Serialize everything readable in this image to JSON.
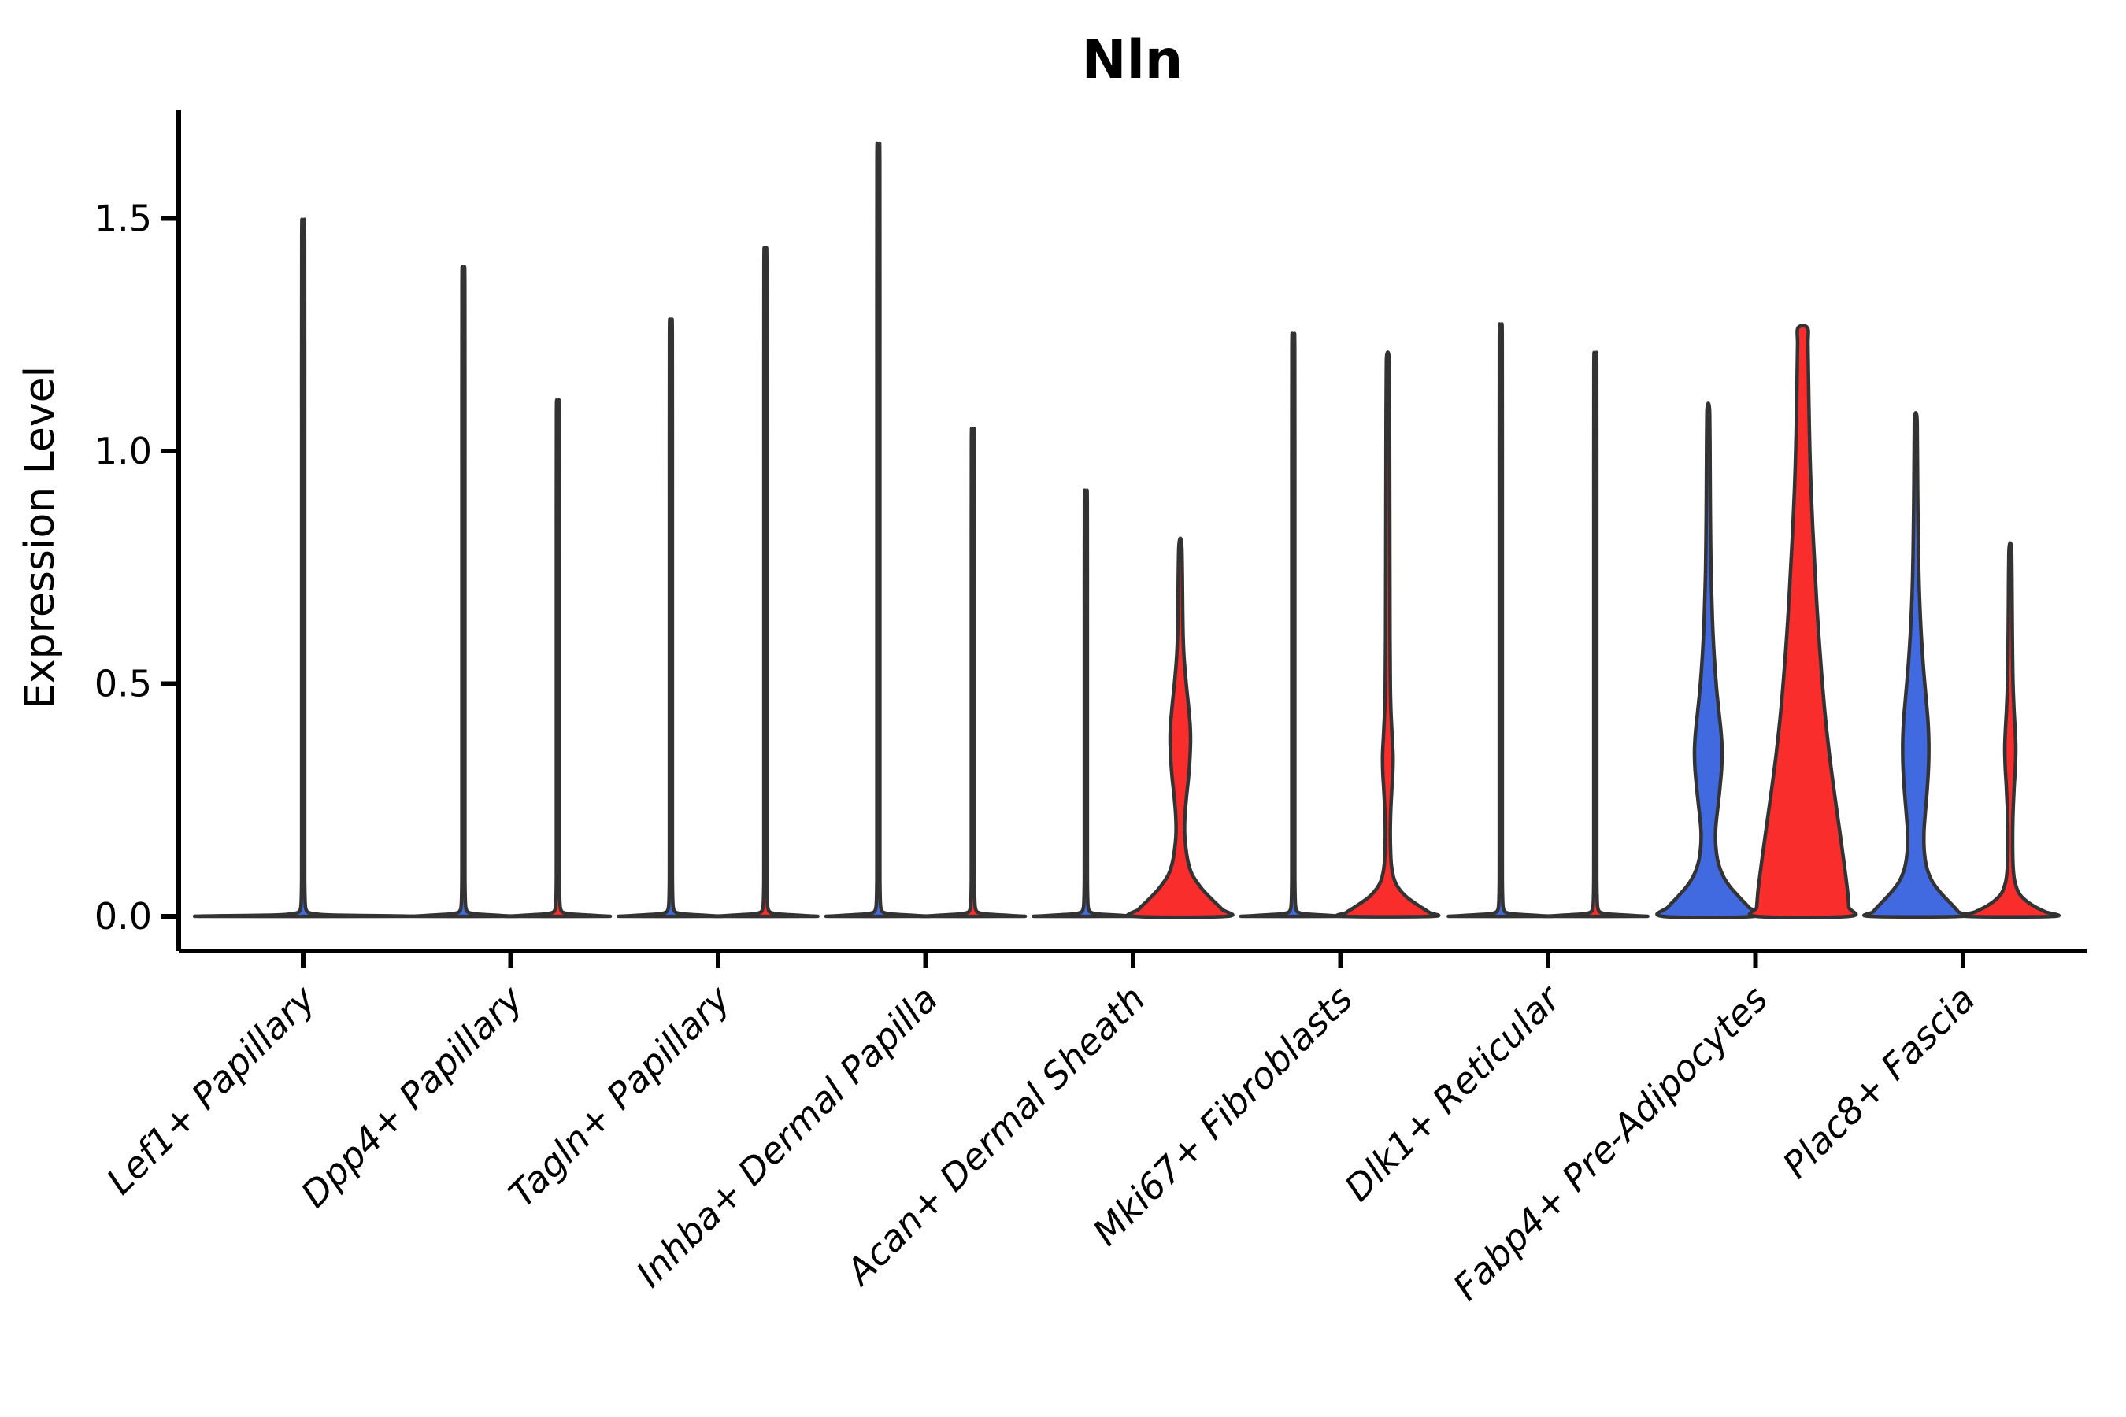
{
  "chart_data": {
    "type": "violin",
    "title": "Nln",
    "ylabel": "Expression Level",
    "xlabel": "",
    "ylim": [
      -0.1,
      1.73
    ],
    "grid": false,
    "legend": "none",
    "yticks": [
      {
        "value": 0.0,
        "label": "0.0"
      },
      {
        "value": 0.5,
        "label": "0.5"
      },
      {
        "value": 1.0,
        "label": "1.0"
      },
      {
        "value": 1.5,
        "label": "1.5"
      }
    ],
    "groups": [
      {
        "name": "group-blue",
        "color": "#4169e0"
      },
      {
        "name": "group-red",
        "color": "#fa2d2d"
      }
    ],
    "outline_color": "#333333",
    "categories": [
      "Lef1+ Papillary",
      "Dpp4+ Papillary",
      "Tagln+ Papillary",
      "Inhba+ Dermal Papilla",
      "Acan+ Dermal Sheath",
      "Mki67+ Fibroblasts",
      "Dlk1+ Reticular",
      "Fabp4+ Pre-Adipocytes",
      "Plac8+ Fascia"
    ],
    "violins": [
      {
        "category": "Lef1+ Papillary",
        "items": [
          {
            "side": "center",
            "kind": "spike",
            "max": 1.48,
            "color": "#4169e0",
            "base_halfwidth": 121
          }
        ]
      },
      {
        "category": "Dpp4+ Papillary",
        "items": [
          {
            "side": "left",
            "kind": "spike",
            "max": 1.38,
            "color": "#4169e0",
            "base_halfwidth": 59
          },
          {
            "side": "right",
            "kind": "spike",
            "max": 1.1,
            "color": "#fa2d2d",
            "base_halfwidth": 59
          }
        ]
      },
      {
        "category": "Tagln+ Papillary",
        "items": [
          {
            "side": "left",
            "kind": "spike",
            "max": 1.27,
            "color": "#4169e0",
            "base_halfwidth": 59
          },
          {
            "side": "right",
            "kind": "spike",
            "max": 1.42,
            "color": "#fa2d2d",
            "base_halfwidth": 59
          }
        ]
      },
      {
        "category": "Inhba+ Dermal Papilla",
        "items": [
          {
            "side": "left",
            "kind": "spike",
            "max": 1.64,
            "color": "#4169e0",
            "base_halfwidth": 59
          },
          {
            "side": "right",
            "kind": "spike",
            "max": 1.04,
            "color": "#fa2d2d",
            "base_halfwidth": 59
          }
        ]
      },
      {
        "category": "Acan+ Dermal Sheath",
        "items": [
          {
            "side": "left",
            "kind": "spike",
            "max": 0.91,
            "color": "#4169e0",
            "base_halfwidth": 59
          },
          {
            "side": "right",
            "kind": "profile",
            "max": 0.81,
            "color": "#fa2d2d",
            "profile": [
              [
                0.81,
                0.8
              ],
              [
                0.79,
                2.0
              ],
              [
                0.73,
                2.6
              ],
              [
                0.66,
                3.0
              ],
              [
                0.6,
                3.6
              ],
              [
                0.55,
                5.0
              ],
              [
                0.5,
                7.5
              ],
              [
                0.45,
                10.5
              ],
              [
                0.41,
                12.5
              ],
              [
                0.38,
                13.0
              ],
              [
                0.34,
                12.2
              ],
              [
                0.3,
                10.5
              ],
              [
                0.26,
                8.0
              ],
              [
                0.22,
                6.0
              ],
              [
                0.19,
                5.4
              ],
              [
                0.16,
                6.2
              ],
              [
                0.12,
                9.5
              ],
              [
                0.09,
                15
              ],
              [
                0.06,
                27
              ],
              [
                0.035,
                41
              ],
              [
                0.015,
                53
              ],
              [
                0,
                59
              ]
            ]
          }
        ]
      },
      {
        "category": "Mki67+ Fibroblasts",
        "items": [
          {
            "side": "left",
            "kind": "spike",
            "max": 1.24,
            "color": "#4169e0",
            "base_halfwidth": 59
          },
          {
            "side": "right",
            "kind": "profile",
            "max": 1.21,
            "color": "#fa2d2d",
            "profile": [
              [
                1.21,
                0.8
              ],
              [
                1.19,
                1.8
              ],
              [
                1.08,
                2.2
              ],
              [
                0.92,
                2.4
              ],
              [
                0.75,
                2.6
              ],
              [
                0.6,
                2.8
              ],
              [
                0.5,
                3.2
              ],
              [
                0.44,
                4.0
              ],
              [
                0.39,
                5.4
              ],
              [
                0.35,
                6.6
              ],
              [
                0.31,
                6.4
              ],
              [
                0.27,
                5.0
              ],
              [
                0.23,
                3.8
              ],
              [
                0.19,
                3.2
              ],
              [
                0.15,
                3.4
              ],
              [
                0.11,
                4.6
              ],
              [
                0.08,
                8
              ],
              [
                0.06,
                14
              ],
              [
                0.04,
                25
              ],
              [
                0.02,
                42
              ],
              [
                0.008,
                53
              ],
              [
                0,
                57
              ]
            ]
          }
        ]
      },
      {
        "category": "Dlk1+ Reticular",
        "items": [
          {
            "side": "left",
            "kind": "spike",
            "max": 1.26,
            "color": "#4169e0",
            "base_halfwidth": 59
          },
          {
            "side": "right",
            "kind": "spike",
            "max": 1.2,
            "color": "#fa2d2d",
            "base_halfwidth": 59
          }
        ]
      },
      {
        "category": "Fabp4+ Pre-Adipocytes",
        "items": [
          {
            "side": "left",
            "kind": "profile",
            "max": 1.1,
            "color": "#4169e0",
            "profile": [
              [
                1.1,
                0.8
              ],
              [
                1.08,
                1.8
              ],
              [
                1.0,
                2.2
              ],
              [
                0.9,
                2.5
              ],
              [
                0.8,
                3.0
              ],
              [
                0.72,
                3.8
              ],
              [
                0.64,
                5.2
              ],
              [
                0.56,
                7.5
              ],
              [
                0.49,
                10.5
              ],
              [
                0.44,
                13.5
              ],
              [
                0.4,
                16.0
              ],
              [
                0.36,
                17.5
              ],
              [
                0.32,
                17.0
              ],
              [
                0.28,
                15.0
              ],
              [
                0.24,
                12.5
              ],
              [
                0.21,
                10.5
              ],
              [
                0.18,
                9.2
              ],
              [
                0.15,
                9.6
              ],
              [
                0.12,
                12
              ],
              [
                0.09,
                18
              ],
              [
                0.065,
                27
              ],
              [
                0.04,
                40
              ],
              [
                0.02,
                51
              ],
              [
                0,
                58
              ]
            ]
          },
          {
            "side": "right",
            "kind": "profile",
            "max": 1.265,
            "color": "#fa2d2d",
            "profile": [
              [
                1.265,
                6
              ],
              [
                1.23,
                6.6
              ],
              [
                1.16,
                7.2
              ],
              [
                1.08,
                8
              ],
              [
                1.0,
                9
              ],
              [
                0.92,
                10.5
              ],
              [
                0.84,
                12.5
              ],
              [
                0.76,
                15
              ],
              [
                0.68,
                17.5
              ],
              [
                0.6,
                20.5
              ],
              [
                0.52,
                24
              ],
              [
                0.44,
                28
              ],
              [
                0.36,
                33
              ],
              [
                0.28,
                39
              ],
              [
                0.2,
                45.5
              ],
              [
                0.12,
                52
              ],
              [
                0.06,
                56.5
              ],
              [
                0.02,
                58.5
              ],
              [
                0,
                59
              ]
            ]
          }
        ]
      },
      {
        "category": "Plac8+ Fascia",
        "items": [
          {
            "side": "left",
            "kind": "profile",
            "max": 1.08,
            "color": "#4169e0",
            "profile": [
              [
                1.08,
                0.8
              ],
              [
                1.06,
                1.8
              ],
              [
                0.97,
                2.2
              ],
              [
                0.87,
                2.7
              ],
              [
                0.78,
                3.4
              ],
              [
                0.7,
                4.5
              ],
              [
                0.62,
                6.5
              ],
              [
                0.54,
                9.5
              ],
              [
                0.47,
                13
              ],
              [
                0.42,
                15.5
              ],
              [
                0.37,
                16.6
              ],
              [
                0.32,
                16.2
              ],
              [
                0.27,
                14.4
              ],
              [
                0.22,
                12
              ],
              [
                0.18,
                10.4
              ],
              [
                0.14,
                10.8
              ],
              [
                0.105,
                14
              ],
              [
                0.075,
                21
              ],
              [
                0.05,
                32
              ],
              [
                0.025,
                46
              ],
              [
                0.01,
                54
              ],
              [
                0,
                58
              ]
            ]
          },
          {
            "side": "right",
            "kind": "profile",
            "max": 0.8,
            "color": "#fa2d2d",
            "profile": [
              [
                0.8,
                0.8
              ],
              [
                0.78,
                1.8
              ],
              [
                0.71,
                2.2
              ],
              [
                0.63,
                2.5
              ],
              [
                0.56,
                2.9
              ],
              [
                0.5,
                3.5
              ],
              [
                0.45,
                4.6
              ],
              [
                0.4,
                6.2
              ],
              [
                0.36,
                7.0
              ],
              [
                0.32,
                6.4
              ],
              [
                0.28,
                5.0
              ],
              [
                0.24,
                3.9
              ],
              [
                0.2,
                3.2
              ],
              [
                0.16,
                3.0
              ],
              [
                0.12,
                3.3
              ],
              [
                0.09,
                4.4
              ],
              [
                0.07,
                6.5
              ],
              [
                0.05,
                11
              ],
              [
                0.035,
                19
              ],
              [
                0.022,
                30
              ],
              [
                0.01,
                44
              ],
              [
                0,
                56
              ]
            ]
          }
        ]
      }
    ]
  }
}
